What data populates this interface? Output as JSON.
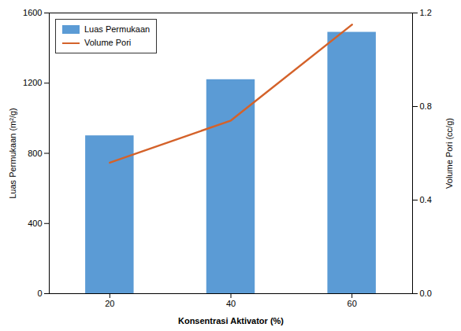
{
  "chart_data": {
    "type": "bar",
    "x": [
      20,
      40,
      60
    ],
    "xlim": [
      10,
      70
    ],
    "xticks": [
      20,
      40,
      60
    ],
    "xlabel": "Konsentrasi Aktivator (%)",
    "ylabel": "Luas Permukaan (m²/g)",
    "y2label": "Volume Pori (cc/g)",
    "ylim": [
      0,
      1600
    ],
    "yticks": [
      0,
      400,
      800,
      1200,
      1600
    ],
    "y2lim": [
      0,
      1.2
    ],
    "y2ticks": [
      {
        "value": 0,
        "label": "0.0"
      },
      {
        "value": 0.4,
        "label": "0.4"
      },
      {
        "value": 0.8,
        "label": "0.8"
      },
      {
        "value": 1.2,
        "label": "1.2"
      }
    ],
    "series": [
      {
        "name": "Luas Permukaan",
        "type": "bar",
        "color": "#5B9BD5",
        "values": [
          900,
          1220,
          1490
        ]
      },
      {
        "name": "Volume Pori",
        "type": "line",
        "color": "#D4622A",
        "values": [
          0.56,
          0.74,
          1.15
        ],
        "axis": "y2"
      }
    ],
    "legend": "upper left",
    "grid": false
  }
}
